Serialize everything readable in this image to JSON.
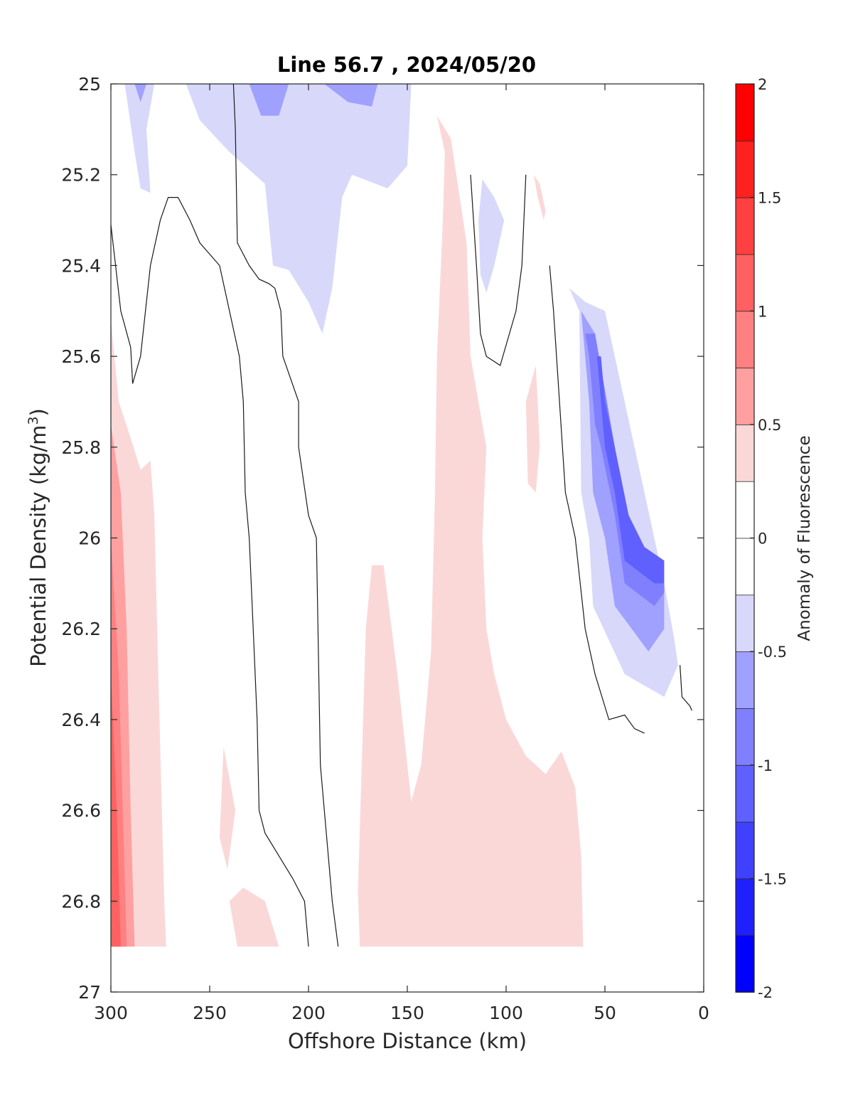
{
  "chart_data": {
    "type": "contour",
    "title": "Line 56.7 , 2024/05/20",
    "xlabel": "Offshore Distance (km)",
    "ylabel_main": "Potential Density (kg/m",
    "ylabel_sup": "3",
    "ylabel_close": ")",
    "colorbar_label": "Anomaly of Fluorescence",
    "xlim": [
      300,
      0
    ],
    "x_reversed": true,
    "ylim": [
      25,
      27
    ],
    "y_reversed": true,
    "x_ticks": [
      300,
      250,
      200,
      150,
      100,
      50,
      0
    ],
    "x_tick_labels": [
      "300",
      "250",
      "200",
      "150",
      "100",
      "50",
      "0"
    ],
    "y_ticks": [
      25,
      25.2,
      25.4,
      25.6,
      25.8,
      26,
      26.2,
      26.4,
      26.6,
      26.8,
      27
    ],
    "y_tick_labels": [
      "25",
      "25.2",
      "25.4",
      "25.6",
      "25.8",
      "26",
      "26.2",
      "26.4",
      "26.6",
      "26.8",
      "27"
    ],
    "colorbar_range": [
      -2,
      2
    ],
    "colorbar_ticks": [
      -2,
      -1.5,
      -1,
      -0.5,
      0,
      0.5,
      1,
      1.5,
      2
    ],
    "colorbar_tick_labels": [
      "-2",
      "-1.5",
      "-1",
      "-0.5",
      "0",
      "0.5",
      "1",
      "1.5",
      "2"
    ],
    "colorbar_levels": [
      {
        "from": -2.0,
        "to": -1.75,
        "color": "#0000ff"
      },
      {
        "from": -1.75,
        "to": -1.5,
        "color": "#2020ff"
      },
      {
        "from": -1.5,
        "to": -1.25,
        "color": "#4040ff"
      },
      {
        "from": -1.25,
        "to": -1.0,
        "color": "#6060ff"
      },
      {
        "from": -1.0,
        "to": -0.75,
        "color": "#8080ff"
      },
      {
        "from": -0.75,
        "to": -0.5,
        "color": "#a0a0ff"
      },
      {
        "from": -0.5,
        "to": -0.25,
        "color": "#d8d8fb"
      },
      {
        "from": -0.25,
        "to": 0.0,
        "color": "#ffffff"
      },
      {
        "from": 0.0,
        "to": 0.25,
        "color": "#ffffff"
      },
      {
        "from": 0.25,
        "to": 0.5,
        "color": "#fbd8d8"
      },
      {
        "from": 0.5,
        "to": 0.75,
        "color": "#ffa0a0"
      },
      {
        "from": 0.75,
        "to": 1.0,
        "color": "#ff8080"
      },
      {
        "from": 1.0,
        "to": 1.25,
        "color": "#ff6060"
      },
      {
        "from": 1.25,
        "to": 1.5,
        "color": "#ff4040"
      },
      {
        "from": 1.5,
        "to": 1.75,
        "color": "#ff2020"
      },
      {
        "from": 1.75,
        "to": 2.0,
        "color": "#ff0000"
      }
    ],
    "regions": [
      {
        "level": -0.375,
        "points": [
          [
            293,
            25
          ],
          [
            288,
            25.15
          ],
          [
            285,
            25.23
          ],
          [
            280,
            25.24
          ],
          [
            282,
            25.1
          ],
          [
            278,
            25
          ]
        ]
      },
      {
        "level": -0.625,
        "points": [
          [
            288,
            25
          ],
          [
            285,
            25.04
          ],
          [
            282,
            25
          ],
          [
            285,
            25
          ]
        ]
      },
      {
        "level": -0.375,
        "points": [
          [
            262,
            25
          ],
          [
            255,
            25.08
          ],
          [
            240,
            25.15
          ],
          [
            222,
            25.22
          ],
          [
            218,
            25.4
          ],
          [
            210,
            25.41
          ],
          [
            200,
            25.48
          ],
          [
            193,
            25.55
          ],
          [
            188,
            25.45
          ],
          [
            183,
            25.25
          ],
          [
            178,
            25.2
          ],
          [
            160,
            25.23
          ],
          [
            150,
            25.18
          ],
          [
            148,
            25
          ],
          [
            190,
            25
          ],
          [
            185,
            25.03
          ],
          [
            172,
            25.05
          ],
          [
            168,
            25
          ],
          [
            222,
            25
          ],
          [
            215,
            25.07
          ],
          [
            208,
            25.06
          ],
          [
            203,
            25
          ]
        ]
      },
      {
        "level": -0.625,
        "points": [
          [
            230,
            25
          ],
          [
            224,
            25.07
          ],
          [
            215,
            25.07
          ],
          [
            210,
            25
          ]
        ]
      },
      {
        "level": -0.625,
        "points": [
          [
            192,
            25
          ],
          [
            180,
            25.04
          ],
          [
            168,
            25.05
          ],
          [
            165,
            25
          ],
          [
            178,
            25
          ]
        ]
      },
      {
        "level": -0.375,
        "points": [
          [
            112,
            25.21
          ],
          [
            106,
            25.25
          ],
          [
            101,
            25.3
          ],
          [
            106,
            25.4
          ],
          [
            110,
            25.46
          ],
          [
            113,
            25.42
          ],
          [
            114,
            25.3
          ]
        ]
      },
      {
        "level": 0.375,
        "points": [
          [
            135,
            25.07
          ],
          [
            128,
            25.12
          ],
          [
            120,
            25.35
          ],
          [
            118,
            25.6
          ],
          [
            110,
            25.8
          ],
          [
            112,
            26.0
          ],
          [
            110,
            26.2
          ],
          [
            106,
            26.3
          ],
          [
            100,
            26.4
          ],
          [
            90,
            26.48
          ],
          [
            80,
            26.52
          ],
          [
            72,
            26.47
          ],
          [
            65,
            26.55
          ],
          [
            62,
            26.7
          ],
          [
            61,
            26.9
          ],
          [
            174,
            26.9
          ],
          [
            175,
            26.78
          ],
          [
            171,
            26.2
          ],
          [
            168,
            26.06
          ],
          [
            162,
            26.06
          ],
          [
            155,
            26.3
          ],
          [
            150,
            26.5
          ],
          [
            148,
            26.58
          ],
          [
            143,
            26.5
          ],
          [
            138,
            26.25
          ],
          [
            136,
            25.9
          ],
          [
            135,
            25.6
          ],
          [
            132,
            25.3
          ],
          [
            131,
            25.15
          ]
        ]
      },
      {
        "level": 0.375,
        "points": [
          [
            86,
            25.2
          ],
          [
            83,
            25.22
          ],
          [
            80,
            25.28
          ],
          [
            81,
            25.3
          ],
          [
            84,
            25.25
          ]
        ]
      },
      {
        "level": 0.375,
        "points": [
          [
            85,
            25.62
          ],
          [
            90,
            25.7
          ],
          [
            89,
            25.88
          ],
          [
            85,
            25.9
          ],
          [
            83,
            25.8
          ],
          [
            84,
            25.7
          ]
        ]
      },
      {
        "level": 0.375,
        "points": [
          [
            300,
            25.52
          ],
          [
            296,
            25.7
          ],
          [
            290,
            25.78
          ],
          [
            285,
            25.85
          ],
          [
            280,
            25.83
          ],
          [
            278,
            25.95
          ],
          [
            276,
            26.3
          ],
          [
            273,
            26.8
          ],
          [
            272,
            26.9
          ],
          [
            300,
            26.9
          ]
        ]
      },
      {
        "level": 0.625,
        "points": [
          [
            300,
            25.75
          ],
          [
            295,
            25.9
          ],
          [
            292,
            26.2
          ],
          [
            290,
            26.6
          ],
          [
            288,
            26.9
          ],
          [
            300,
            26.9
          ]
        ]
      },
      {
        "level": 0.875,
        "points": [
          [
            300,
            26.0
          ],
          [
            296,
            26.3
          ],
          [
            294,
            26.6
          ],
          [
            292,
            26.9
          ],
          [
            300,
            26.9
          ]
        ]
      },
      {
        "level": 1.125,
        "points": [
          [
            300,
            26.3
          ],
          [
            297,
            26.6
          ],
          [
            295,
            26.9
          ],
          [
            300,
            26.9
          ]
        ]
      },
      {
        "level": 0.375,
        "points": [
          [
            243,
            26.46
          ],
          [
            237,
            26.6
          ],
          [
            241,
            26.73
          ],
          [
            245,
            26.66
          ]
        ]
      },
      {
        "level": 0.375,
        "points": [
          [
            240,
            26.8
          ],
          [
            233,
            26.77
          ],
          [
            222,
            26.8
          ],
          [
            215,
            26.9
          ],
          [
            236,
            26.9
          ]
        ]
      },
      {
        "level": -0.375,
        "points": [
          [
            68,
            25.45
          ],
          [
            63,
            25.5
          ],
          [
            62,
            25.9
          ],
          [
            58,
            26.0
          ],
          [
            56,
            26.15
          ],
          [
            40,
            26.3
          ],
          [
            20,
            26.35
          ],
          [
            15,
            26.3
          ],
          [
            13,
            26.28
          ],
          [
            15,
            26.22
          ],
          [
            20,
            26.1
          ],
          [
            50,
            25.5
          ],
          [
            60,
            25.48
          ]
        ]
      },
      {
        "level": -0.625,
        "points": [
          [
            62,
            25.5
          ],
          [
            58,
            25.7
          ],
          [
            56,
            25.9
          ],
          [
            50,
            26.0
          ],
          [
            45,
            26.15
          ],
          [
            28,
            26.25
          ],
          [
            20,
            26.2
          ],
          [
            20,
            26.1
          ],
          [
            38,
            26.0
          ],
          [
            45,
            25.8
          ],
          [
            55,
            25.55
          ]
        ]
      },
      {
        "level": -0.875,
        "points": [
          [
            60,
            25.55
          ],
          [
            58,
            25.6
          ],
          [
            55,
            25.75
          ],
          [
            52,
            25.8
          ],
          [
            45,
            25.95
          ],
          [
            40,
            26.1
          ],
          [
            25,
            26.15
          ],
          [
            20,
            26.12
          ],
          [
            20,
            26.1
          ],
          [
            38,
            26.0
          ],
          [
            45,
            25.8
          ],
          [
            55,
            25.55
          ]
        ]
      },
      {
        "level": -1.125,
        "points": [
          [
            58,
            25.6
          ],
          [
            54,
            25.6
          ],
          [
            52,
            25.7
          ],
          [
            50,
            25.8
          ],
          [
            45,
            25.9
          ],
          [
            40,
            26.05
          ],
          [
            25,
            26.1
          ],
          [
            20,
            26.1
          ],
          [
            20,
            26.05
          ],
          [
            30,
            26.02
          ],
          [
            38,
            25.95
          ],
          [
            45,
            25.8
          ],
          [
            50,
            25.7
          ],
          [
            52,
            25.6
          ]
        ]
      }
    ],
    "contour_lines": [
      [
        [
          300,
          25.31
        ],
        [
          295,
          25.5
        ],
        [
          290,
          25.58
        ],
        [
          289,
          25.66
        ],
        [
          285,
          25.6
        ],
        [
          280,
          25.4
        ],
        [
          275,
          25.3
        ],
        [
          271,
          25.25
        ],
        [
          266,
          25.25
        ],
        [
          260,
          25.3
        ],
        [
          255,
          25.35
        ],
        [
          245,
          25.4
        ],
        [
          240,
          25.5
        ],
        [
          235,
          25.6
        ],
        [
          233,
          25.7
        ],
        [
          232,
          25.9
        ],
        [
          230,
          26.0
        ],
        [
          228,
          26.2
        ],
        [
          226,
          26.4
        ],
        [
          225,
          26.6
        ],
        [
          222,
          26.65
        ],
        [
          215,
          26.7
        ],
        [
          208,
          26.75
        ],
        [
          202,
          26.8
        ],
        [
          200,
          26.9
        ]
      ],
      [
        [
          185,
          26.9
        ],
        [
          188,
          26.8
        ],
        [
          194,
          26.5
        ],
        [
          196,
          26.0
        ],
        [
          200,
          25.95
        ],
        [
          205,
          25.8
        ],
        [
          205,
          25.7
        ],
        [
          213,
          25.6
        ],
        [
          214,
          25.5
        ],
        [
          217,
          25.45
        ],
        [
          220,
          25.44
        ],
        [
          225,
          25.43
        ],
        [
          230,
          25.4
        ],
        [
          236,
          25.35
        ],
        [
          237,
          25.1
        ],
        [
          238,
          25
        ]
      ],
      [
        [
          118,
          25.2
        ],
        [
          115,
          25.4
        ],
        [
          113,
          25.55
        ],
        [
          110,
          25.6
        ],
        [
          103,
          25.62
        ],
        [
          95,
          25.5
        ],
        [
          92,
          25.4
        ],
        [
          90,
          25.2
        ]
      ],
      [
        [
          78,
          25.4
        ],
        [
          76,
          25.5
        ],
        [
          73,
          25.7
        ],
        [
          70,
          25.9
        ],
        [
          65,
          26.0
        ],
        [
          60,
          26.2
        ],
        [
          55,
          26.3
        ],
        [
          48,
          26.4
        ],
        [
          40,
          26.39
        ],
        [
          35,
          26.42
        ],
        [
          30,
          26.43
        ]
      ],
      [
        [
          12,
          26.28
        ],
        [
          11,
          26.35
        ],
        [
          7,
          26.37
        ],
        [
          6,
          26.38
        ]
      ]
    ]
  }
}
